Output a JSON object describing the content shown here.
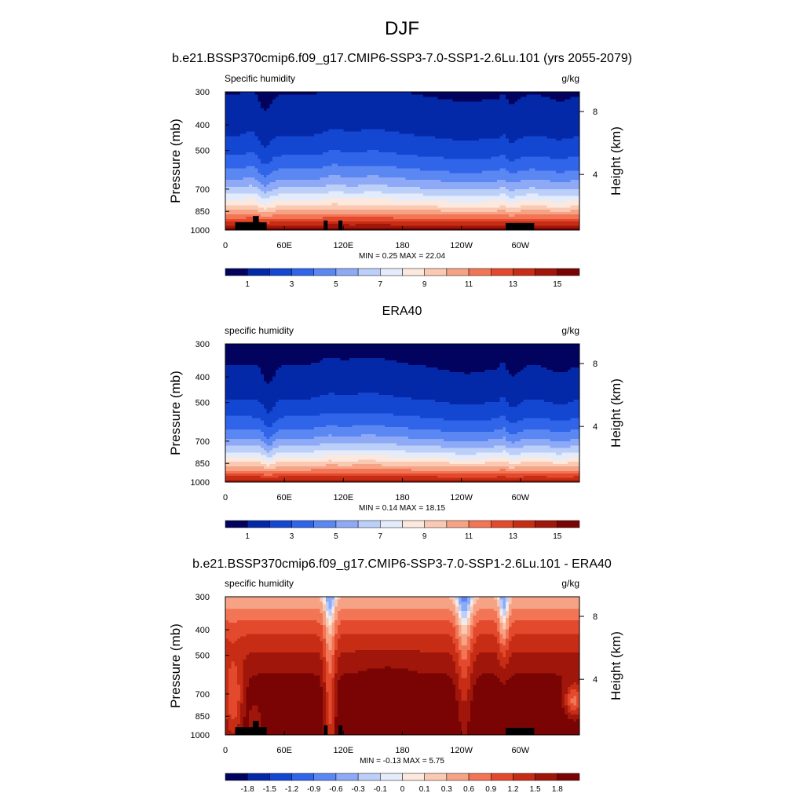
{
  "figure": {
    "title": "DJF"
  },
  "panels": [
    {
      "title": "b.e21.BSSP370cmip6.f09_g17.CMIP6-SSP3-7.0-SSP1-2.6Lu.101 (yrs 2055-2079)",
      "left_label": "Specific humidity",
      "units": "g/kg",
      "stats": "MIN =   0.25  MAX =  22.04",
      "field": "model",
      "has_topo": true,
      "colorbar": {
        "labels": [
          "1",
          "3",
          "5",
          "7",
          "9",
          "11",
          "13",
          "15"
        ],
        "colors": [
          "#02035f",
          "#0429a8",
          "#1346d1",
          "#3064e9",
          "#5a87f2",
          "#8ea9f6",
          "#bccff9",
          "#e4ecfb",
          "#fde8dd",
          "#fac9b3",
          "#f6a385",
          "#f27556",
          "#e34a2d",
          "#c72d14",
          "#a0160a",
          "#7a0403"
        ]
      }
    },
    {
      "title": "ERA40",
      "left_label": "specific humidity",
      "units": "g/kg",
      "stats": "MIN =   0.14  MAX =  18.15",
      "field": "obs",
      "has_topo": false,
      "colorbar": {
        "labels": [
          "1",
          "3",
          "5",
          "7",
          "9",
          "11",
          "13",
          "15"
        ],
        "colors": [
          "#02035f",
          "#0429a8",
          "#1346d1",
          "#3064e9",
          "#5a87f2",
          "#8ea9f6",
          "#bccff9",
          "#e4ecfb",
          "#fde8dd",
          "#fac9b3",
          "#f6a385",
          "#f27556",
          "#e34a2d",
          "#c72d14",
          "#a0160a",
          "#7a0403"
        ]
      }
    },
    {
      "title": "b.e21.BSSP370cmip6.f09_g17.CMIP6-SSP3-7.0-SSP1-2.6Lu.101 - ERA40",
      "left_label": "specific humidity",
      "units": "g/kg",
      "stats": "MIN =  -0.13  MAX =   5.75",
      "field": "diff",
      "has_topo": true,
      "colorbar": {
        "labels": [
          "-1.8",
          "-1.5",
          "-1.2",
          "-0.9",
          "-0.6",
          "-0.3",
          "-0.1",
          "0",
          "0.1",
          "0.3",
          "0.6",
          "0.9",
          "1.2",
          "1.5",
          "1.8"
        ],
        "colors": [
          "#02035f",
          "#0429a8",
          "#1346d1",
          "#3064e9",
          "#5a87f2",
          "#8ea9f6",
          "#bccff9",
          "#e4ecfb",
          "#fde8dd",
          "#fac9b3",
          "#f6a385",
          "#f27556",
          "#e34a2d",
          "#c72d14",
          "#a0160a",
          "#7a0403"
        ]
      }
    }
  ],
  "chart_data": [
    {
      "type": "heatmap",
      "title": "b.e21.BSSP370cmip6.f09_g17.CMIP6-SSP3-7.0-SSP1-2.6Lu.101 (yrs 2055-2079)",
      "ylabel": "Pressure (mb)",
      "y2label": "Height (km)",
      "x_ticks": [
        "0",
        "60E",
        "120E",
        "180",
        "120W",
        "60W"
      ],
      "y_ticks": [
        "300",
        "400",
        "500",
        "700",
        "850",
        "1000"
      ],
      "y2_ticks": [
        "8",
        "4"
      ],
      "xlim": [
        0,
        360
      ],
      "ylim": [
        1000,
        300
      ],
      "y_scale": "log",
      "min": 0.25,
      "max": 22.04,
      "units": "g/kg"
    },
    {
      "type": "heatmap",
      "title": "ERA40",
      "ylabel": "Pressure (mb)",
      "y2label": "Height (km)",
      "x_ticks": [
        "0",
        "60E",
        "120E",
        "180",
        "120W",
        "60W"
      ],
      "y_ticks": [
        "300",
        "400",
        "500",
        "700",
        "850",
        "1000"
      ],
      "y2_ticks": [
        "8",
        "4"
      ],
      "xlim": [
        0,
        360
      ],
      "ylim": [
        1000,
        300
      ],
      "y_scale": "log",
      "min": 0.14,
      "max": 18.15,
      "units": "g/kg"
    },
    {
      "type": "heatmap",
      "title": "b.e21.BSSP370cmip6.f09_g17.CMIP6-SSP3-7.0-SSP1-2.6Lu.101 - ERA40",
      "ylabel": "Pressure (mb)",
      "y2label": "Height (km)",
      "x_ticks": [
        "0",
        "60E",
        "120E",
        "180",
        "120W",
        "60W"
      ],
      "y_ticks": [
        "300",
        "400",
        "500",
        "700",
        "850",
        "1000"
      ],
      "y2_ticks": [
        "8",
        "4"
      ],
      "xlim": [
        0,
        360
      ],
      "ylim": [
        1000,
        300
      ],
      "y_scale": "log",
      "min": -0.13,
      "max": 5.75,
      "units": "g/kg"
    }
  ]
}
